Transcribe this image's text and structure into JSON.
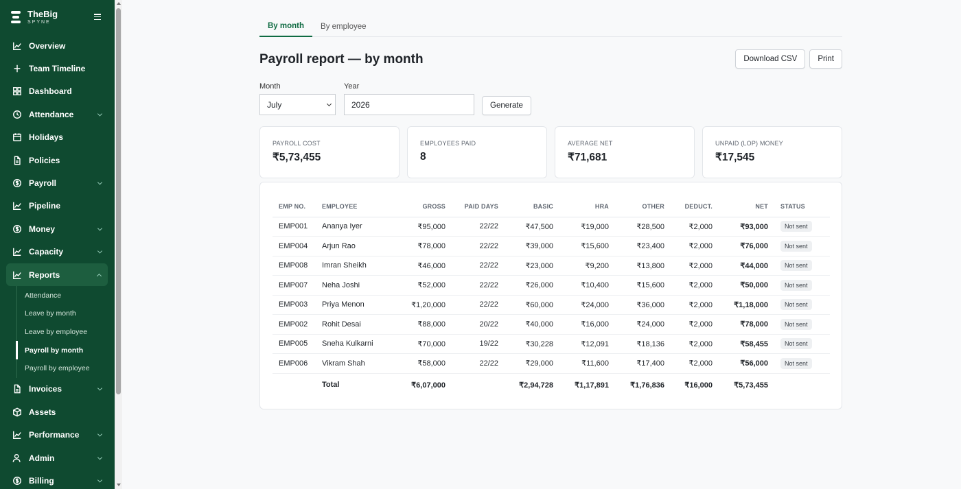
{
  "brand": {
    "name": "TheBig",
    "sub": "SPYNE"
  },
  "nav": [
    {
      "label": "Overview",
      "icon": "chart-line-icon",
      "chevron": false
    },
    {
      "label": "Team Timeline",
      "icon": "timeline-icon",
      "chevron": false
    },
    {
      "label": "Dashboard",
      "icon": "grid-icon",
      "chevron": false
    },
    {
      "label": "Attendance",
      "icon": "clock-icon",
      "chevron": true
    },
    {
      "label": "Holidays",
      "icon": "calendar-icon",
      "chevron": false
    },
    {
      "label": "Policies",
      "icon": "document-icon",
      "chevron": false
    },
    {
      "label": "Payroll",
      "icon": "dollar-circle-icon",
      "chevron": true
    },
    {
      "label": "Pipeline",
      "icon": "chart-line-icon",
      "chevron": false
    },
    {
      "label": "Money",
      "icon": "dollar-circle-icon",
      "chevron": true
    },
    {
      "label": "Capacity",
      "icon": "chart-line-icon",
      "chevron": true
    },
    {
      "label": "Reports",
      "icon": "chart-line-icon",
      "chevron": true
    }
  ],
  "reports_sub": [
    "Attendance",
    "Leave by month",
    "Leave by employee",
    "Payroll by month",
    "Payroll by employee"
  ],
  "nav_bottom": [
    {
      "label": "Invoices",
      "icon": "document-icon",
      "chevron": true
    },
    {
      "label": "Assets",
      "icon": "box-icon",
      "chevron": false
    },
    {
      "label": "Performance",
      "icon": "chart-line-icon",
      "chevron": true
    },
    {
      "label": "Admin",
      "icon": "user-icon",
      "chevron": true
    },
    {
      "label": "Billing",
      "icon": "dollar-circle-icon",
      "chevron": true
    }
  ],
  "tabs": [
    "By month",
    "By employee"
  ],
  "page_title": "Payroll report — by month",
  "actions": {
    "download": "Download CSV",
    "print": "Print"
  },
  "filters": {
    "month_label": "Month",
    "month_value": "July",
    "year_label": "Year",
    "year_value": "2026",
    "generate": "Generate"
  },
  "stats": [
    {
      "label": "PAYROLL COST",
      "value": "₹5,73,455"
    },
    {
      "label": "EMPLOYEES PAID",
      "value": "8"
    },
    {
      "label": "AVERAGE NET",
      "value": "₹71,681"
    },
    {
      "label": "UNPAID (LOP) MONEY",
      "value": "₹17,545"
    }
  ],
  "table": {
    "headers": [
      "EMP NO.",
      "EMPLOYEE",
      "GROSS",
      "PAID DAYS",
      "BASIC",
      "HRA",
      "OTHER",
      "DEDUCT.",
      "NET",
      "STATUS"
    ],
    "rows": [
      [
        "EMP001",
        "Ananya Iyer",
        "₹95,000",
        "22/22",
        "₹47,500",
        "₹19,000",
        "₹28,500",
        "₹2,000",
        "₹93,000",
        "Not sent"
      ],
      [
        "EMP004",
        "Arjun Rao",
        "₹78,000",
        "22/22",
        "₹39,000",
        "₹15,600",
        "₹23,400",
        "₹2,000",
        "₹76,000",
        "Not sent"
      ],
      [
        "EMP008",
        "Imran Sheikh",
        "₹46,000",
        "22/22",
        "₹23,000",
        "₹9,200",
        "₹13,800",
        "₹2,000",
        "₹44,000",
        "Not sent"
      ],
      [
        "EMP007",
        "Neha Joshi",
        "₹52,000",
        "22/22",
        "₹26,000",
        "₹10,400",
        "₹15,600",
        "₹2,000",
        "₹50,000",
        "Not sent"
      ],
      [
        "EMP003",
        "Priya Menon",
        "₹1,20,000",
        "22/22",
        "₹60,000",
        "₹24,000",
        "₹36,000",
        "₹2,000",
        "₹1,18,000",
        "Not sent"
      ],
      [
        "EMP002",
        "Rohit Desai",
        "₹88,000",
        "20/22",
        "₹40,000",
        "₹16,000",
        "₹24,000",
        "₹2,000",
        "₹78,000",
        "Not sent"
      ],
      [
        "EMP005",
        "Sneha Kulkarni",
        "₹70,000",
        "19/22",
        "₹30,228",
        "₹12,091",
        "₹18,136",
        "₹2,000",
        "₹58,455",
        "Not sent"
      ],
      [
        "EMP006",
        "Vikram Shah",
        "₹58,000",
        "22/22",
        "₹29,000",
        "₹11,600",
        "₹17,400",
        "₹2,000",
        "₹56,000",
        "Not sent"
      ]
    ],
    "total": [
      "",
      "Total",
      "₹6,07,000",
      "",
      "₹2,94,728",
      "₹1,17,891",
      "₹1,76,836",
      "₹16,000",
      "₹5,73,455",
      ""
    ]
  }
}
